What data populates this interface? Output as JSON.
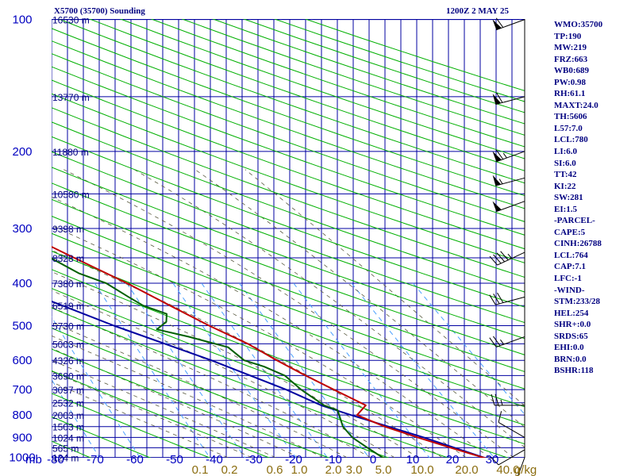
{
  "title_left": "X5700 (35700) Sounding",
  "title_right": "1200Z  2 MAY 25",
  "indices": [
    "WMO:35700",
    "TP:190",
    "MW:219",
    "FRZ:663",
    "WB0:689",
    "PW:0.98",
    "RH:61.1",
    "MAXT:24.0",
    "TH:5606",
    "L57:7.0",
    "LCL:780",
    "LI:6.0",
    "SI:6.0",
    "TT:42",
    "KI:22",
    "SW:281",
    "EI:1.5",
    "-PARCEL-",
    "CAPE:5",
    "CINH:26788",
    "LCL:764",
    "CAP:7.1",
    "LFC:-1",
    "-WIND-",
    "STM:233/28",
    "HEL:254",
    "SHR+:0.0",
    "SRDS:65",
    "EHI:0.0",
    "BRN:0.0",
    "BSHR:118"
  ],
  "colors": {
    "grid": "#0000a0",
    "dry_adiabat": "#00b000",
    "moist_adiabat": "#5a5a40",
    "mixing_ratio": "#4aa0ff",
    "temperature": "#c00000",
    "dewpoint": "#006000",
    "parcel": "#0000a0",
    "wind": "#000000"
  },
  "chart_data": {
    "type": "skew-t",
    "pressure_unit_label": "mb",
    "pressure_levels": [
      100,
      200,
      300,
      400,
      500,
      600,
      700,
      800,
      900,
      1000
    ],
    "temperature_ticks": [
      -80,
      -70,
      -60,
      -50,
      -40,
      -30,
      -20,
      -10,
      0,
      10,
      20,
      30
    ],
    "mixing_ratio_ticks": [
      "0.1",
      "0.2",
      "0.6",
      "1.0",
      "2.0",
      "3.0",
      "5.0",
      "10.0",
      "20.0",
      "40.0",
      "g/kg"
    ],
    "height_labels": [
      {
        "p": 100,
        "label": "16530 m"
      },
      {
        "p": 150,
        "label": "13770 m"
      },
      {
        "p": 200,
        "label": "11880 m"
      },
      {
        "p": 250,
        "label": "10580 m"
      },
      {
        "p": 300,
        "label": "9398 m"
      },
      {
        "p": 350,
        "label": "8328 m"
      },
      {
        "p": 400,
        "label": "7380 m"
      },
      {
        "p": 450,
        "label": "6519 m"
      },
      {
        "p": 500,
        "label": "5730 m"
      },
      {
        "p": 550,
        "label": "5003 m"
      },
      {
        "p": 600,
        "label": "4326 m"
      },
      {
        "p": 650,
        "label": "3690 m"
      },
      {
        "p": 700,
        "label": "3097 m"
      },
      {
        "p": 750,
        "label": "2532 m"
      },
      {
        "p": 800,
        "label": "2003 m"
      },
      {
        "p": 850,
        "label": "1503 m"
      },
      {
        "p": 900,
        "label": "1024 m"
      },
      {
        "p": 950,
        "label": "565 m"
      },
      {
        "p": 1000,
        "label": "124 m"
      }
    ],
    "temperature_profile": [
      [
        1012,
        24.0
      ],
      [
        950,
        18.0
      ],
      [
        900,
        13.0
      ],
      [
        850,
        8.0
      ],
      [
        800,
        4.0
      ],
      [
        780,
        5.0
      ],
      [
        760,
        6.0
      ],
      [
        700,
        1.5
      ],
      [
        650,
        -2.5
      ],
      [
        600,
        -6.5
      ],
      [
        550,
        -10.5
      ],
      [
        500,
        -16.0
      ],
      [
        450,
        -21.5
      ],
      [
        400,
        -27.5
      ],
      [
        350,
        -35.0
      ],
      [
        300,
        -43.5
      ],
      [
        250,
        -52.0
      ],
      [
        200,
        -62.0
      ],
      [
        175,
        -66.5
      ],
      [
        150,
        -64.0
      ],
      [
        120,
        -66.0
      ],
      [
        100,
        -68.0
      ]
    ],
    "dewpoint_profile": [
      [
        1012,
        7.0
      ],
      [
        1000,
        6.0
      ],
      [
        950,
        4.0
      ],
      [
        900,
        2.0
      ],
      [
        850,
        1.0
      ],
      [
        800,
        1.0
      ],
      [
        780,
        1.0
      ],
      [
        760,
        -1.0
      ],
      [
        700,
        -4.0
      ],
      [
        650,
        -6.0
      ],
      [
        620,
        -9.0
      ],
      [
        600,
        -12.0
      ],
      [
        560,
        -14.0
      ],
      [
        530,
        -20.0
      ],
      [
        510,
        -25.0
      ],
      [
        490,
        -23.0
      ],
      [
        470,
        -22.5
      ],
      [
        450,
        -26.0
      ],
      [
        430,
        -28.0
      ],
      [
        400,
        -31.0
      ],
      [
        380,
        -35.0
      ],
      [
        350,
        -39.0
      ],
      [
        300,
        -48.0
      ],
      [
        250,
        -59.0
      ],
      [
        220,
        -68.0
      ],
      [
        200,
        -72.0
      ],
      [
        180,
        -76.0
      ],
      [
        150,
        -75.0
      ],
      [
        130,
        -77.0
      ],
      [
        110,
        -76.0
      ],
      [
        100,
        -77.0
      ]
    ],
    "parcel_profile": [
      [
        1012,
        24.0
      ],
      [
        900,
        14.0
      ],
      [
        800,
        3.0
      ],
      [
        760,
        -1.5
      ],
      [
        700,
        -6.5
      ],
      [
        600,
        -17.5
      ],
      [
        500,
        -32.0
      ],
      [
        400,
        -48.0
      ],
      [
        300,
        -67.0
      ],
      [
        200,
        -93.0
      ],
      [
        180,
        -99.0
      ]
    ],
    "wind_barbs": [
      {
        "p": 100,
        "dir": 250,
        "spd": 60
      },
      {
        "p": 150,
        "dir": 255,
        "spd": 60
      },
      {
        "p": 200,
        "dir": 250,
        "spd": 65
      },
      {
        "p": 230,
        "dir": 255,
        "spd": 55
      },
      {
        "p": 260,
        "dir": 250,
        "spd": 50
      },
      {
        "p": 340,
        "dir": 245,
        "spd": 45
      },
      {
        "p": 430,
        "dir": 255,
        "spd": 30
      },
      {
        "p": 530,
        "dir": 250,
        "spd": 25
      },
      {
        "p": 760,
        "dir": 270,
        "spd": 25
      },
      {
        "p": 900,
        "dir": 300,
        "spd": 10
      },
      {
        "p": 960,
        "dir": 240,
        "spd": 10
      },
      {
        "p": 1000,
        "dir": 200,
        "spd": 10
      }
    ]
  }
}
